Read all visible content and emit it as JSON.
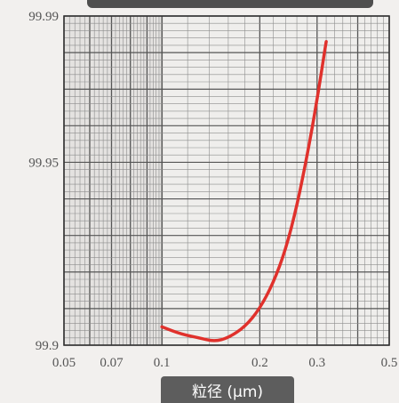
{
  "chart_data": {
    "type": "line",
    "title": "",
    "xlabel": "粒径 (μm)",
    "ylabel": "",
    "x_scale": "log",
    "xlim": [
      0.05,
      0.5
    ],
    "ylim": [
      99.9,
      99.99
    ],
    "x_ticks": [
      {
        "value": 0.05,
        "label": "0.05"
      },
      {
        "value": 0.07,
        "label": "0.07"
      },
      {
        "value": 0.1,
        "label": "0.1"
      },
      {
        "value": 0.2,
        "label": "0.2"
      },
      {
        "value": 0.3,
        "label": "0.3"
      },
      {
        "value": 0.5,
        "label": "0.5"
      }
    ],
    "y_ticks": [
      {
        "value": 99.9,
        "label": "99.9"
      },
      {
        "value": 99.95,
        "label": "99.95"
      },
      {
        "value": 99.99,
        "label": "99.99"
      }
    ],
    "grid": true,
    "line_color": "#e0312c",
    "series": [
      {
        "x": [
          0.1,
          0.115,
          0.13,
          0.145,
          0.16,
          0.18,
          0.2,
          0.22,
          0.24,
          0.26,
          0.28,
          0.3,
          0.32
        ],
        "y": [
          99.905,
          99.903,
          99.902,
          99.901,
          99.902,
          99.905,
          99.91,
          99.917,
          99.926,
          99.938,
          99.952,
          99.967,
          99.983
        ]
      }
    ]
  }
}
